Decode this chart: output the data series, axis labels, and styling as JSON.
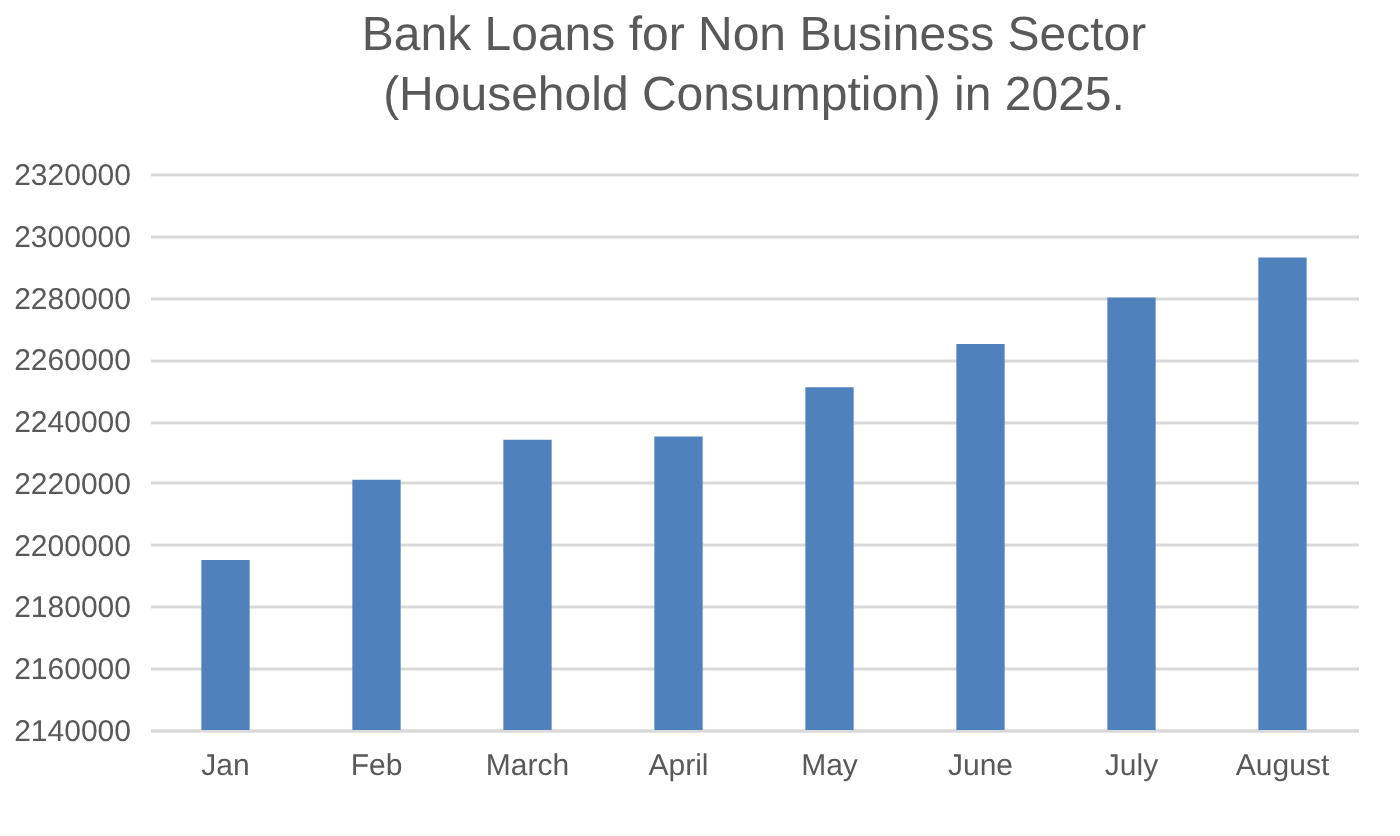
{
  "chart_data": {
    "type": "bar",
    "title": "Bank Loans for Non Business Sector (Household Consumption) in 2025.",
    "categories": [
      "Jan",
      "Feb",
      "March",
      "April",
      "May",
      "June",
      "July",
      "August"
    ],
    "values": [
      2195000,
      2221000,
      2234000,
      2235000,
      2251000,
      2265000,
      2280000,
      2293000
    ],
    "color": "#4f81bd",
    "ylim": [
      2140000,
      2320000
    ],
    "yticks": [
      2140000,
      2160000,
      2180000,
      2200000,
      2220000,
      2240000,
      2260000,
      2280000,
      2300000,
      2320000
    ],
    "grid": "y"
  }
}
